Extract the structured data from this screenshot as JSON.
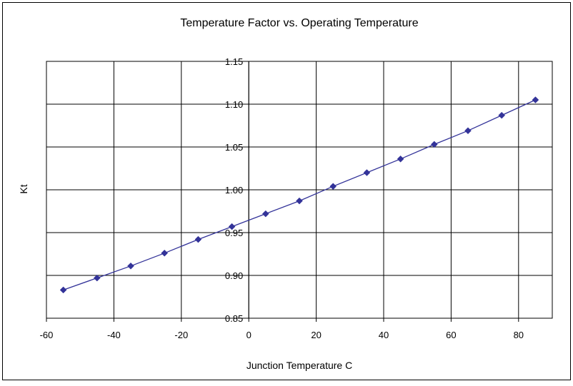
{
  "chart_data": {
    "type": "line",
    "title": "Temperature Factor vs. Operating Temperature",
    "xlabel": "Junction Temperature C",
    "ylabel": "Kt",
    "xlim": [
      -60,
      90
    ],
    "ylim": [
      0.85,
      1.15
    ],
    "x_ticks": [
      -60,
      -40,
      -20,
      0,
      20,
      40,
      60,
      80
    ],
    "y_ticks": [
      0.85,
      0.9,
      0.95,
      1.0,
      1.05,
      1.1,
      1.15
    ],
    "x_tick_labels": [
      "-60",
      "-40",
      "-20",
      "0",
      "20",
      "40",
      "60",
      "80"
    ],
    "y_tick_labels": [
      "0.85",
      "0.90",
      "0.95",
      "1.00",
      "1.05",
      "1.10",
      "1.15"
    ],
    "grid": true,
    "legend": "none",
    "marker": "diamond",
    "series": [
      {
        "x": [
          -55,
          -45,
          -35,
          -25,
          -15,
          -5,
          5,
          15,
          25,
          35,
          45,
          55,
          65,
          75,
          85
        ],
        "y": [
          0.883,
          0.897,
          0.911,
          0.926,
          0.942,
          0.957,
          0.972,
          0.987,
          1.004,
          1.02,
          1.036,
          1.053,
          1.069,
          1.087,
          1.105
        ],
        "color": "#333399"
      }
    ]
  }
}
